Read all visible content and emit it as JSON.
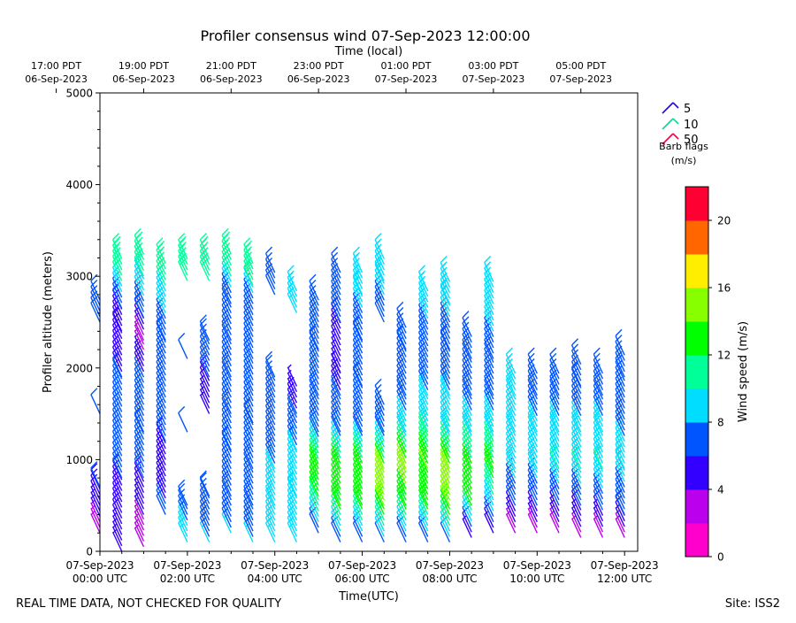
{
  "chart_data": {
    "type": "wind-barb-profile",
    "title": "Profiler consensus wind 07-Sep-2023 12:00:00",
    "top_axis_label": "Time (local)",
    "top_ticks": [
      {
        "x_hours": -1.0,
        "line1": "17:00 PDT",
        "line2": "06-Sep-2023"
      },
      {
        "x_hours": 1.0,
        "line1": "19:00 PDT",
        "line2": "06-Sep-2023"
      },
      {
        "x_hours": 3.0,
        "line1": "21:00 PDT",
        "line2": "06-Sep-2023"
      },
      {
        "x_hours": 5.0,
        "line1": "23:00 PDT",
        "line2": "06-Sep-2023"
      },
      {
        "x_hours": 7.0,
        "line1": "01:00 PDT",
        "line2": "07-Sep-2023"
      },
      {
        "x_hours": 9.0,
        "line1": "03:00 PDT",
        "line2": "07-Sep-2023"
      },
      {
        "x_hours": 11.0,
        "line1": "05:00 PDT",
        "line2": "07-Sep-2023"
      }
    ],
    "xlabel": "Time(UTC)",
    "bottom_ticks": [
      {
        "x_hours": 0,
        "line1": "07-Sep-2023",
        "line2": "00:00 UTC"
      },
      {
        "x_hours": 2,
        "line1": "07-Sep-2023",
        "line2": "02:00 UTC"
      },
      {
        "x_hours": 4,
        "line1": "07-Sep-2023",
        "line2": "04:00 UTC"
      },
      {
        "x_hours": 6,
        "line1": "07-Sep-2023",
        "line2": "06:00 UTC"
      },
      {
        "x_hours": 8,
        "line1": "07-Sep-2023",
        "line2": "08:00 UTC"
      },
      {
        "x_hours": 10,
        "line1": "07-Sep-2023",
        "line2": "10:00 UTC"
      },
      {
        "x_hours": 12,
        "line1": "07-Sep-2023",
        "line2": "12:00 UTC"
      }
    ],
    "xlim": [
      0,
      12.3
    ],
    "ylabel": "Profiler altitude (meters)",
    "ylim": [
      0,
      5000
    ],
    "yticks": [
      0,
      1000,
      2000,
      3000,
      4000,
      5000
    ],
    "legend": {
      "entries": [
        {
          "label": "5",
          "color": "#2200dd"
        },
        {
          "label": "10",
          "color": "#00dd99"
        },
        {
          "label": "50",
          "color": "#ee0044"
        }
      ],
      "caption_line1": "Barb flags",
      "caption_line2": "(m/s)"
    },
    "colorbar": {
      "label": "Wind speed (m/s)",
      "vmin": 0,
      "vmax": 22,
      "tick_values": [
        0,
        4,
        8,
        12,
        16,
        20
      ],
      "tick_labels": [
        "0",
        "4",
        "8",
        "12",
        "16",
        "20"
      ],
      "colors": [
        "#ff00cc",
        "#bb00ee",
        "#3300ff",
        "#0055ff",
        "#00ddff",
        "#00ff99",
        "#00ff00",
        "#88ff00",
        "#ffee00",
        "#ff6600",
        "#ff0033"
      ]
    },
    "profiles": [
      {
        "t": 0.0,
        "obs": [
          [
            200,
            3
          ],
          [
            700,
            6
          ],
          [
            1500,
            6
          ],
          [
            2500,
            6
          ]
        ]
      },
      {
        "t": 0.5,
        "obs": [
          [
            0,
            4
          ],
          [
            300,
            5
          ],
          [
            800,
            6
          ],
          [
            1400,
            6
          ],
          [
            1900,
            6
          ],
          [
            2400,
            5
          ],
          [
            2650,
            6
          ],
          [
            2950,
            10
          ]
        ]
      },
      {
        "t": 1.0,
        "obs": [
          [
            50,
            3
          ],
          [
            400,
            4
          ],
          [
            800,
            6
          ],
          [
            1300,
            6
          ],
          [
            1900,
            6
          ],
          [
            2300,
            3
          ],
          [
            2550,
            6
          ],
          [
            3000,
            10
          ]
        ]
      },
      {
        "t": 1.5,
        "obs": [
          [
            400,
            7
          ],
          [
            700,
            5
          ],
          [
            1200,
            6
          ],
          [
            1800,
            6
          ],
          [
            2300,
            6
          ],
          [
            2900,
            10
          ]
        ]
      },
      {
        "t": 2.0,
        "obs": [
          [
            100,
            9
          ],
          [
            500,
            7
          ],
          [
            1300,
            6
          ],
          [
            2100,
            6
          ],
          [
            2950,
            10
          ]
        ]
      },
      {
        "t": 2.5,
        "obs": [
          [
            100,
            8
          ],
          [
            600,
            7
          ],
          [
            1500,
            4
          ],
          [
            1900,
            6
          ],
          [
            2300,
            6
          ],
          [
            2950,
            10
          ]
        ]
      },
      {
        "t": 3.0,
        "obs": [
          [
            200,
            8
          ],
          [
            600,
            7
          ],
          [
            1100,
            6
          ],
          [
            1500,
            6
          ],
          [
            1900,
            6
          ],
          [
            2300,
            6
          ],
          [
            2700,
            6
          ],
          [
            3000,
            10
          ]
        ]
      },
      {
        "t": 3.5,
        "obs": [
          [
            100,
            8
          ],
          [
            500,
            7
          ],
          [
            900,
            6
          ],
          [
            1400,
            6
          ],
          [
            1750,
            6
          ],
          [
            2100,
            6
          ],
          [
            2700,
            6
          ],
          [
            2900,
            10
          ]
        ]
      },
      {
        "t": 4.0,
        "obs": [
          [
            100,
            8
          ],
          [
            500,
            8
          ],
          [
            900,
            8
          ],
          [
            1500,
            6
          ],
          [
            1900,
            6
          ],
          [
            2800,
            6
          ]
        ]
      },
      {
        "t": 4.5,
        "obs": [
          [
            100,
            8
          ],
          [
            600,
            9
          ],
          [
            1100,
            8
          ],
          [
            1500,
            6
          ],
          [
            1800,
            4
          ],
          [
            2600,
            9
          ]
        ]
      },
      {
        "t": 5.0,
        "obs": [
          [
            200,
            7
          ],
          [
            600,
            12
          ],
          [
            950,
            13
          ],
          [
            1300,
            6
          ],
          [
            1700,
            6
          ],
          [
            2200,
            6
          ],
          [
            2500,
            6
          ]
        ]
      },
      {
        "t": 5.5,
        "obs": [
          [
            100,
            6
          ],
          [
            500,
            13
          ],
          [
            900,
            13
          ],
          [
            1300,
            7
          ],
          [
            1700,
            6
          ],
          [
            1950,
            4
          ],
          [
            2500,
            6
          ],
          [
            2800,
            6
          ]
        ]
      },
      {
        "t": 6.0,
        "obs": [
          [
            100,
            6
          ],
          [
            500,
            13
          ],
          [
            900,
            13
          ],
          [
            1300,
            7
          ],
          [
            1800,
            6
          ],
          [
            2300,
            6
          ],
          [
            2800,
            9
          ]
        ]
      },
      {
        "t": 6.5,
        "obs": [
          [
            100,
            7
          ],
          [
            500,
            14
          ],
          [
            900,
            14
          ],
          [
            1300,
            7
          ],
          [
            1600,
            6
          ],
          [
            2500,
            6
          ],
          [
            2950,
            9
          ]
        ]
      },
      {
        "t": 7.0,
        "obs": [
          [
            100,
            7
          ],
          [
            500,
            13
          ],
          [
            900,
            15
          ],
          [
            1300,
            9
          ],
          [
            1700,
            7
          ],
          [
            2200,
            6
          ]
        ]
      },
      {
        "t": 7.5,
        "obs": [
          [
            100,
            7
          ],
          [
            500,
            13
          ],
          [
            900,
            14
          ],
          [
            1300,
            10
          ],
          [
            1700,
            8
          ],
          [
            2300,
            6
          ],
          [
            2600,
            9
          ]
        ]
      },
      {
        "t": 8.0,
        "obs": [
          [
            100,
            7
          ],
          [
            500,
            14
          ],
          [
            900,
            14
          ],
          [
            1300,
            9
          ],
          [
            1700,
            8
          ],
          [
            2200,
            6
          ],
          [
            2700,
            9
          ]
        ]
      },
      {
        "t": 8.5,
        "obs": [
          [
            150,
            4
          ],
          [
            500,
            12
          ],
          [
            900,
            13
          ],
          [
            1300,
            9
          ],
          [
            1700,
            7
          ],
          [
            2100,
            6
          ]
        ]
      },
      {
        "t": 9.0,
        "obs": [
          [
            200,
            4
          ],
          [
            500,
            9
          ],
          [
            900,
            13
          ],
          [
            1300,
            9
          ],
          [
            1700,
            7
          ],
          [
            2100,
            7
          ],
          [
            2700,
            9
          ]
        ]
      },
      {
        "t": 9.5,
        "obs": [
          [
            200,
            3
          ],
          [
            500,
            6
          ],
          [
            900,
            9
          ],
          [
            1300,
            9
          ],
          [
            1700,
            8
          ]
        ]
      },
      {
        "t": 10.0,
        "obs": [
          [
            200,
            3
          ],
          [
            500,
            6
          ],
          [
            900,
            9
          ],
          [
            1300,
            9
          ],
          [
            1700,
            6
          ]
        ]
      },
      {
        "t": 10.5,
        "obs": [
          [
            200,
            3
          ],
          [
            500,
            6
          ],
          [
            900,
            10
          ],
          [
            1300,
            9
          ],
          [
            1700,
            6
          ]
        ]
      },
      {
        "t": 11.0,
        "obs": [
          [
            150,
            3
          ],
          [
            500,
            6
          ],
          [
            900,
            10
          ],
          [
            1300,
            9
          ],
          [
            1800,
            6
          ]
        ]
      },
      {
        "t": 11.5,
        "obs": [
          [
            150,
            3
          ],
          [
            450,
            6
          ],
          [
            900,
            10
          ],
          [
            1300,
            9
          ],
          [
            1700,
            6
          ]
        ]
      },
      {
        "t": 12.0,
        "obs": [
          [
            150,
            3
          ],
          [
            400,
            6
          ],
          [
            900,
            9
          ],
          [
            1500,
            7
          ],
          [
            1900,
            6
          ]
        ]
      }
    ]
  },
  "footer": {
    "disclaimer": "REAL TIME DATA, NOT CHECKED FOR QUALITY",
    "site": "Site: ISS2"
  }
}
